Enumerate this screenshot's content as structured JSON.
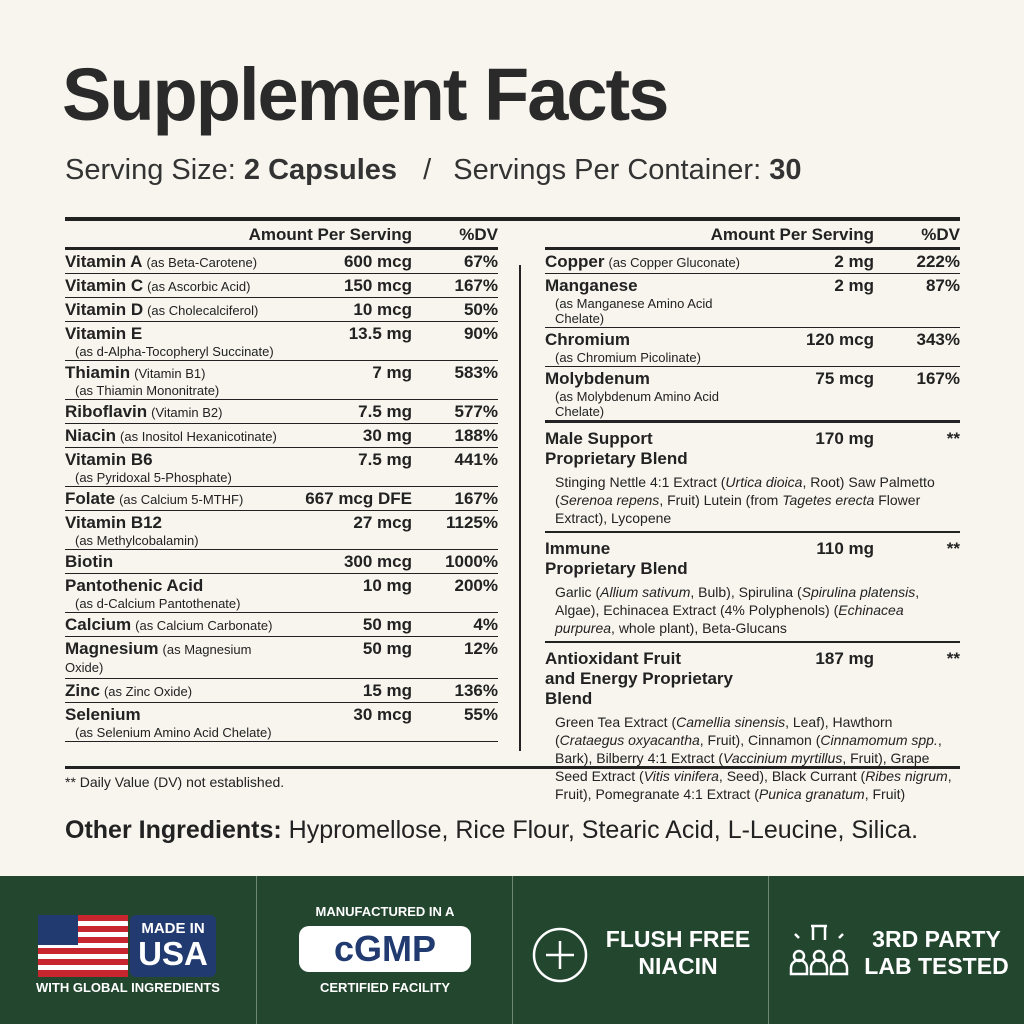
{
  "header": {
    "title": "Supplement Facts",
    "serving_size_label": "Serving Size:",
    "serving_size": "2 Capsules",
    "separator": "/",
    "servings_label": "Servings Per Container:",
    "servings": "30"
  },
  "table": {
    "columns": [
      "Amount Per Serving",
      "%DV"
    ],
    "left_rows": [
      {
        "name": "Vitamin A",
        "note": "(as Beta-Carotene)",
        "amount": "600 mcg",
        "dv": "67%"
      },
      {
        "name": "Vitamin C",
        "note": "(as Ascorbic Acid)",
        "amount": "150 mcg",
        "dv": "167%"
      },
      {
        "name": "Vitamin D",
        "note": "(as Cholecalciferol)",
        "amount": "10 mcg",
        "dv": "50%"
      },
      {
        "name": "Vitamin E",
        "detail": "(as d-Alpha-Tocopheryl Succinate)",
        "amount": "13.5 mg",
        "dv": "90%"
      },
      {
        "name": "Thiamin",
        "note": "(Vitamin B1)",
        "detail": "(as Thiamin Mononitrate)",
        "amount": "7 mg",
        "dv": "583%"
      },
      {
        "name": "Riboflavin",
        "note": "(Vitamin B2)",
        "amount": "7.5 mg",
        "dv": "577%"
      },
      {
        "name": "Niacin",
        "note": "(as Inositol Hexanicotinate)",
        "amount": "30 mg",
        "dv": "188%"
      },
      {
        "name": "Vitamin B6",
        "detail": "(as Pyridoxal 5-Phosphate)",
        "amount": "7.5 mg",
        "dv": "441%"
      },
      {
        "name": "Folate",
        "note": "(as Calcium 5-MTHF)",
        "amount": "667 mcg DFE",
        "dv": "167%"
      },
      {
        "name": "Vitamin B12",
        "detail": "(as Methylcobalamin)",
        "amount": "27 mcg",
        "dv": "1125%"
      },
      {
        "name": "Biotin",
        "amount": "300 mcg",
        "dv": "1000%"
      },
      {
        "name": "Pantothenic Acid",
        "detail": "(as d-Calcium Pantothenate)",
        "amount": "10 mg",
        "dv": "200%"
      },
      {
        "name": "Calcium",
        "note": "(as Calcium Carbonate)",
        "amount": "50 mg",
        "dv": "4%"
      },
      {
        "name": "Magnesium",
        "note": "(as Magnesium Oxide)",
        "amount": "50 mg",
        "dv": "12%"
      },
      {
        "name": "Zinc",
        "note": "(as Zinc Oxide)",
        "amount": "15 mg",
        "dv": "136%"
      },
      {
        "name": "Selenium",
        "detail": "(as Selenium Amino Acid Chelate)",
        "amount": "30 mcg",
        "dv": "55%"
      }
    ],
    "right_rows": [
      {
        "name": "Copper",
        "note": "(as Copper Gluconate)",
        "amount": "2 mg",
        "dv": "222%"
      },
      {
        "name": "Manganese",
        "detail": "(as Manganese Amino Acid Chelate)",
        "amount": "2 mg",
        "dv": "87%"
      },
      {
        "name": "Chromium",
        "detail": "(as Chromium Picolinate)",
        "amount": "120 mcg",
        "dv": "343%"
      },
      {
        "name": "Molybdenum",
        "detail": "(as Molybdenum Amino Acid Chelate)",
        "amount": "75 mcg",
        "dv": "167%"
      }
    ],
    "blends": [
      {
        "name": "Male Support\nProprietary Blend",
        "amount": "170 mg",
        "dv": "**",
        "description": [
          "Stinging Nettle 4:1 Extract (",
          "Urtica dioica",
          ", Root) Saw Palmetto (",
          "Serenoa repens",
          ", Fruit) Lutein (from ",
          "Tagetes erecta",
          " Flower Extract), Lycopene"
        ]
      },
      {
        "name": "Immune\nProprietary Blend",
        "amount": "110 mg",
        "dv": "**",
        "description": [
          "Garlic (",
          "Allium sativum",
          ", Bulb), Spirulina (",
          "Spirulina platensis",
          ", Algae), Echinacea Extract (4% Polyphenols) (",
          "Echinacea purpurea",
          ", whole plant), Beta-Glucans"
        ]
      },
      {
        "name": "Antioxidant Fruit\nand Energy Proprietary Blend",
        "amount": "187 mg",
        "dv": "**",
        "description": [
          "Green Tea Extract (",
          "Camellia sinensis",
          ", Leaf), Hawthorn (",
          "Crataegus oxyacantha",
          ", Fruit), Cinnamon (",
          "Cinnamomum spp.",
          ", Bark), Bilberry 4:1 Extract (",
          "Vaccinium myrtillus",
          ", Fruit), Grape Seed Extract (",
          "Vitis vinifera",
          ", Seed), Black Currant (",
          "Ribes nigrum",
          ", Fruit), Pomegranate 4:1 Extract (",
          "Punica granatum",
          ", Fruit)"
        ]
      }
    ]
  },
  "footnote": "** Daily Value (DV) not established.",
  "other_ingredients": {
    "label": "Other Ingredients:",
    "text": "Hypromellose, Rice Flour, Stearic Acid, L-Leucine, Silica."
  },
  "badges": [
    {
      "lines": [
        "MADE IN",
        "USA"
      ],
      "caption": "WITH GLOBAL INGREDIENTS"
    },
    {
      "top": "MANUFACTURED IN A",
      "main": "cGMP",
      "caption": "CERTIFIED FACILITY"
    },
    {
      "lines": [
        "FLUSH FREE",
        "NIACIN"
      ]
    },
    {
      "lines": [
        "3RD PARTY",
        "LAB TESTED"
      ]
    }
  ]
}
